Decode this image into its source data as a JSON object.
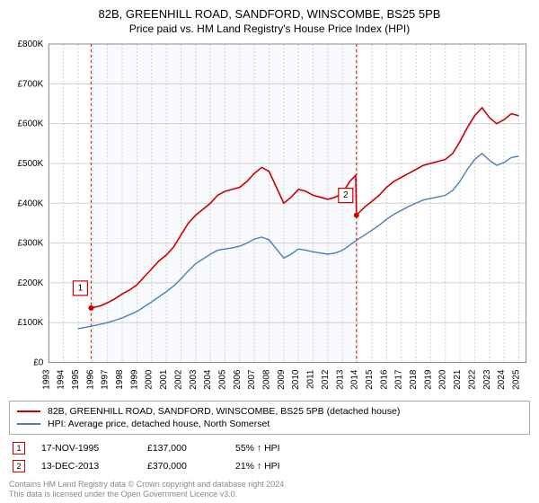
{
  "title": "82B, GREENHILL ROAD, SANDFORD, WINSCOMBE, BS25 5PB",
  "subtitle": "Price paid vs. HM Land Registry's House Price Index (HPI)",
  "chart": {
    "type": "line",
    "background_color": "#ffffff",
    "shade_color": "#f1f5fb",
    "grid_color": "#d0d0d0",
    "axis_color": "#888888",
    "text_color": "#000000",
    "xlim": [
      1993,
      2025.5
    ],
    "ylim": [
      0,
      800000
    ],
    "ytick_step": 100000,
    "yticks": [
      "£0",
      "£100K",
      "£200K",
      "£300K",
      "£400K",
      "£500K",
      "£600K",
      "£700K",
      "£800K"
    ],
    "xticks": [
      1993,
      1994,
      1995,
      1996,
      1997,
      1998,
      1999,
      2000,
      2001,
      2002,
      2003,
      2004,
      2005,
      2006,
      2007,
      2008,
      2009,
      2010,
      2011,
      2012,
      2013,
      2014,
      2015,
      2016,
      2017,
      2018,
      2019,
      2020,
      2021,
      2022,
      2023,
      2024,
      2025
    ],
    "shade_x": [
      1995.88,
      2013.95
    ],
    "series": [
      {
        "key": "property",
        "color": "#cc0000",
        "label": "82B, GREENHILL ROAD, SANDFORD, WINSCOMBE, BS25 5PB (detached house)",
        "start_x": 1995.88,
        "points": [
          [
            1995.88,
            137000
          ],
          [
            1996.5,
            142000
          ],
          [
            1997,
            150000
          ],
          [
            1997.5,
            160000
          ],
          [
            1998,
            172000
          ],
          [
            1998.5,
            182000
          ],
          [
            1999,
            195000
          ],
          [
            1999.5,
            215000
          ],
          [
            2000,
            235000
          ],
          [
            2000.5,
            255000
          ],
          [
            2001,
            270000
          ],
          [
            2001.5,
            290000
          ],
          [
            2002,
            320000
          ],
          [
            2002.5,
            350000
          ],
          [
            2003,
            370000
          ],
          [
            2003.5,
            385000
          ],
          [
            2004,
            400000
          ],
          [
            2004.5,
            420000
          ],
          [
            2005,
            430000
          ],
          [
            2005.5,
            435000
          ],
          [
            2006,
            440000
          ],
          [
            2006.5,
            455000
          ],
          [
            2007,
            475000
          ],
          [
            2007.5,
            490000
          ],
          [
            2008,
            480000
          ],
          [
            2008.5,
            440000
          ],
          [
            2009,
            400000
          ],
          [
            2009.5,
            415000
          ],
          [
            2010,
            435000
          ],
          [
            2010.5,
            430000
          ],
          [
            2011,
            420000
          ],
          [
            2011.5,
            415000
          ],
          [
            2012,
            410000
          ],
          [
            2012.5,
            415000
          ],
          [
            2013,
            425000
          ],
          [
            2013.5,
            455000
          ],
          [
            2013.9,
            470000
          ],
          [
            2013.95,
            370000
          ],
          [
            2014.5,
            390000
          ],
          [
            2015,
            405000
          ],
          [
            2015.5,
            420000
          ],
          [
            2016,
            440000
          ],
          [
            2016.5,
            455000
          ],
          [
            2017,
            465000
          ],
          [
            2017.5,
            475000
          ],
          [
            2018,
            485000
          ],
          [
            2018.5,
            495000
          ],
          [
            2019,
            500000
          ],
          [
            2019.5,
            505000
          ],
          [
            2020,
            510000
          ],
          [
            2020.5,
            525000
          ],
          [
            2021,
            555000
          ],
          [
            2021.5,
            590000
          ],
          [
            2022,
            620000
          ],
          [
            2022.5,
            640000
          ],
          [
            2023,
            615000
          ],
          [
            2023.5,
            600000
          ],
          [
            2024,
            610000
          ],
          [
            2024.5,
            625000
          ],
          [
            2025,
            620000
          ]
        ]
      },
      {
        "key": "hpi",
        "color": "#4a7ebb",
        "label": "HPI: Average price, detached house, North Somerset",
        "start_x": 1995.0,
        "points": [
          [
            1995,
            85000
          ],
          [
            1995.5,
            88000
          ],
          [
            1996,
            92000
          ],
          [
            1996.5,
            96000
          ],
          [
            1997,
            100000
          ],
          [
            1997.5,
            106000
          ],
          [
            1998,
            112000
          ],
          [
            1998.5,
            120000
          ],
          [
            1999,
            128000
          ],
          [
            1999.5,
            140000
          ],
          [
            2000,
            152000
          ],
          [
            2000.5,
            165000
          ],
          [
            2001,
            178000
          ],
          [
            2001.5,
            192000
          ],
          [
            2002,
            210000
          ],
          [
            2002.5,
            230000
          ],
          [
            2003,
            248000
          ],
          [
            2003.5,
            260000
          ],
          [
            2004,
            272000
          ],
          [
            2004.5,
            282000
          ],
          [
            2005,
            285000
          ],
          [
            2005.5,
            288000
          ],
          [
            2006,
            292000
          ],
          [
            2006.5,
            300000
          ],
          [
            2007,
            310000
          ],
          [
            2007.5,
            315000
          ],
          [
            2008,
            308000
          ],
          [
            2008.5,
            285000
          ],
          [
            2009,
            262000
          ],
          [
            2009.5,
            272000
          ],
          [
            2010,
            285000
          ],
          [
            2010.5,
            282000
          ],
          [
            2011,
            278000
          ],
          [
            2011.5,
            275000
          ],
          [
            2012,
            272000
          ],
          [
            2012.5,
            275000
          ],
          [
            2013,
            282000
          ],
          [
            2013.5,
            295000
          ],
          [
            2014,
            308000
          ],
          [
            2014.5,
            320000
          ],
          [
            2015,
            332000
          ],
          [
            2015.5,
            345000
          ],
          [
            2016,
            360000
          ],
          [
            2016.5,
            372000
          ],
          [
            2017,
            382000
          ],
          [
            2017.5,
            392000
          ],
          [
            2018,
            400000
          ],
          [
            2018.5,
            408000
          ],
          [
            2019,
            412000
          ],
          [
            2019.5,
            416000
          ],
          [
            2020,
            420000
          ],
          [
            2020.5,
            432000
          ],
          [
            2021,
            455000
          ],
          [
            2021.5,
            485000
          ],
          [
            2022,
            510000
          ],
          [
            2022.5,
            525000
          ],
          [
            2023,
            508000
          ],
          [
            2023.5,
            495000
          ],
          [
            2024,
            502000
          ],
          [
            2024.5,
            515000
          ],
          [
            2025,
            518000
          ]
        ]
      }
    ],
    "markers": [
      {
        "n": "1",
        "x": 1995.88,
        "y": 137000,
        "color": "#cc0000"
      },
      {
        "n": "2",
        "x": 2013.95,
        "y": 370000,
        "color": "#cc0000"
      }
    ]
  },
  "sales": [
    {
      "n": "1",
      "date": "17-NOV-1995",
      "price": "£137,000",
      "diff": "55% ↑ HPI",
      "color": "#cc0000"
    },
    {
      "n": "2",
      "date": "13-DEC-2013",
      "price": "£370,000",
      "diff": "21% ↑ HPI",
      "color": "#cc0000"
    }
  ],
  "footer_line1": "Contains HM Land Registry data © Crown copyright and database right 2024.",
  "footer_line2": "This data is licensed under the Open Government Licence v3.0."
}
